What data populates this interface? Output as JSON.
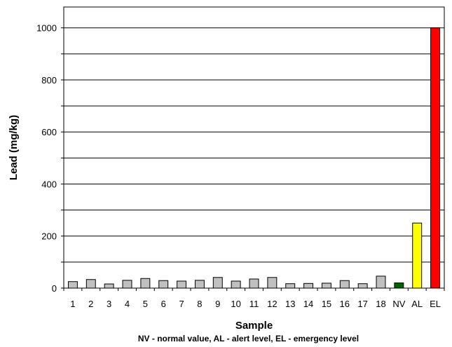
{
  "chart_data": {
    "type": "bar",
    "title": "",
    "xlabel": "Sample",
    "ylabel": "Lead (mg/kg)",
    "caption": "NV - normal value, AL - alert level, EL - emergency level",
    "categories": [
      "1",
      "2",
      "3",
      "4",
      "5",
      "6",
      "7",
      "8",
      "9",
      "10",
      "11",
      "12",
      "13",
      "14",
      "15",
      "16",
      "17",
      "18",
      "NV",
      "AL",
      "EL"
    ],
    "values": [
      25,
      33,
      16,
      30,
      37,
      29,
      27,
      30,
      41,
      27,
      35,
      41,
      17,
      18,
      19,
      29,
      17,
      46,
      20,
      250,
      1000
    ],
    "colors": [
      "#c0c0c0",
      "#c0c0c0",
      "#c0c0c0",
      "#c0c0c0",
      "#c0c0c0",
      "#c0c0c0",
      "#c0c0c0",
      "#c0c0c0",
      "#c0c0c0",
      "#c0c0c0",
      "#c0c0c0",
      "#c0c0c0",
      "#c0c0c0",
      "#c0c0c0",
      "#c0c0c0",
      "#c0c0c0",
      "#c0c0c0",
      "#c0c0c0",
      "#006400",
      "#ffff00",
      "#ff0000"
    ],
    "ylim": [
      0,
      1000
    ],
    "y_tick_labels": [
      0,
      200,
      400,
      600,
      800,
      1000
    ],
    "gridlines": [
      100,
      200,
      300,
      400,
      500,
      600,
      700,
      800,
      900,
      1000
    ],
    "grid": true,
    "legend": "none"
  }
}
